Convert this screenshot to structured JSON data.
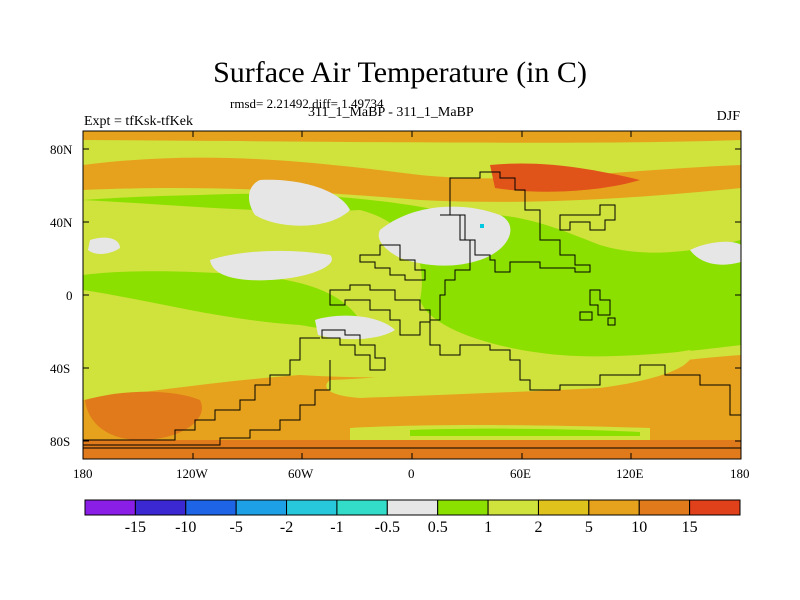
{
  "header": {
    "title": "Surface Air Temperature (in C)",
    "stats": "rmsd= 2.21492 diff= 1.49734",
    "subtitle": "311_1_MaBP - 311_1_MaBP",
    "left_label": "Expt = tfKsk-tfKek",
    "right_label": "DJF"
  },
  "map": {
    "lat_ticks": [
      "80N",
      "40N",
      "0",
      "40S",
      "80S"
    ],
    "lon_ticks": [
      "180",
      "120W",
      "60W",
      "0",
      "60E",
      "120E",
      "180"
    ],
    "colors": {
      "light_green": "#d0e23c",
      "green": "#8ce000",
      "gray": "#e6e6e6",
      "orange": "#e6a21d",
      "dark_orange": "#e07a1a",
      "red": "#e0541a",
      "yellow": "#e0c21d",
      "cyan": "#00c8e0"
    }
  },
  "colorbar": {
    "colors": [
      "#8a1ee6",
      "#3c28d2",
      "#1e64e6",
      "#1ea0e6",
      "#28c8dc",
      "#32dcc8",
      "#e6e6e6",
      "#8ce000",
      "#d0e23c",
      "#e0c21d",
      "#e6a21d",
      "#e07a1a",
      "#e0401a"
    ],
    "labels": [
      "-15",
      "-10",
      "-5",
      "-2",
      "-1",
      "-0.5",
      "0.5",
      "1",
      "2",
      "5",
      "10",
      "15"
    ]
  }
}
